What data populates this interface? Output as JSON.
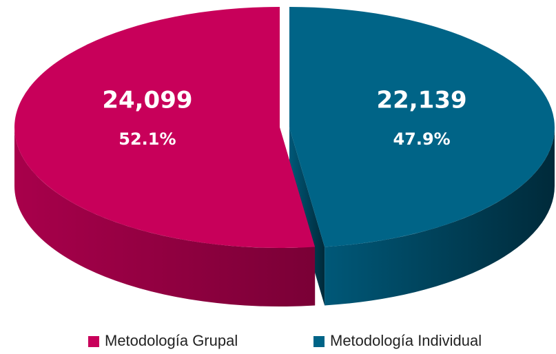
{
  "chart_data": {
    "type": "pie3d",
    "categories": [
      "Metodología Grupal",
      "Metodología Individual"
    ],
    "values": [
      24099,
      22139
    ],
    "value_labels": [
      "24,099",
      "22,139"
    ],
    "percents": [
      52.1,
      47.9
    ],
    "percent_labels": [
      "52.1%",
      "47.9%"
    ],
    "colors": [
      "#c8005a",
      "#006487"
    ],
    "legend": "bottom"
  }
}
